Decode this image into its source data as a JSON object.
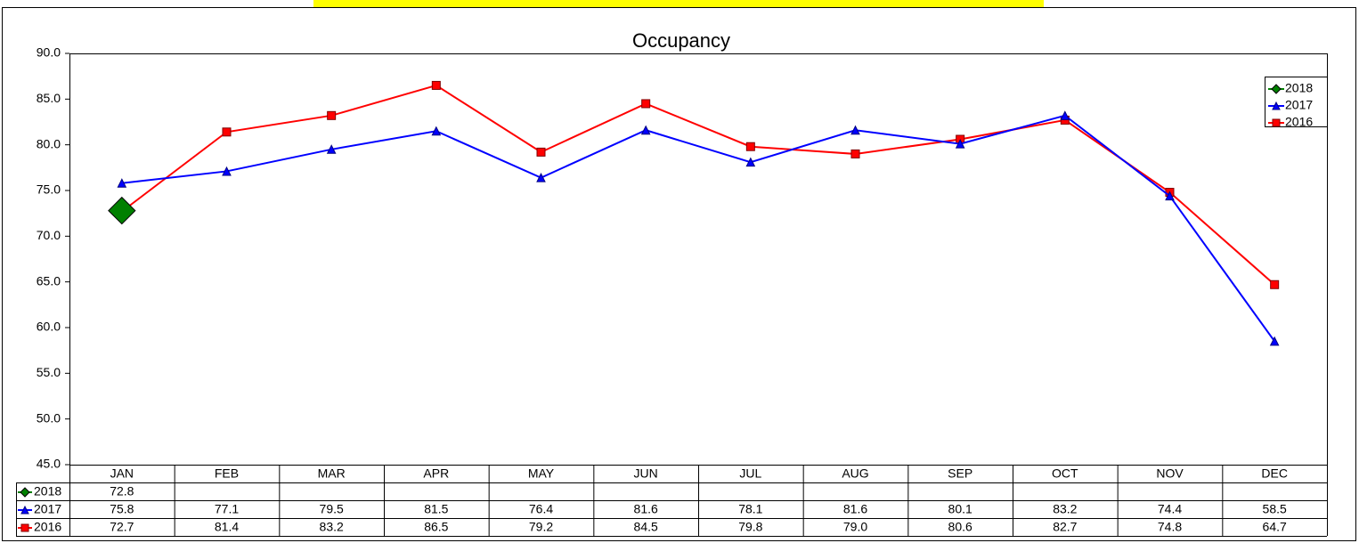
{
  "chart_data": {
    "type": "line",
    "title": "Occupancy",
    "categories": [
      "JAN",
      "FEB",
      "MAR",
      "APR",
      "MAY",
      "JUN",
      "JUL",
      "AUG",
      "SEP",
      "OCT",
      "NOV",
      "DEC"
    ],
    "series": [
      {
        "name": "2018",
        "color": "#008000",
        "marker": "diamond",
        "values": [
          72.8,
          null,
          null,
          null,
          null,
          null,
          null,
          null,
          null,
          null,
          null,
          null
        ],
        "value_labels": [
          "72.8",
          null,
          null,
          null,
          null,
          null,
          null,
          null,
          null,
          null,
          null,
          null
        ]
      },
      {
        "name": "2017",
        "color": "#0000ff",
        "marker": "triangle",
        "values": [
          75.8,
          77.1,
          79.5,
          81.5,
          76.4,
          81.6,
          78.1,
          81.6,
          80.1,
          83.2,
          74.4,
          58.5
        ],
        "value_labels": [
          "75.8",
          "77.1",
          "79.5",
          "81.5",
          "76.4",
          "81.6",
          "78.1",
          "81.6",
          "80.1",
          "83.2",
          "74.4",
          "58.5"
        ]
      },
      {
        "name": "2016",
        "color": "#ff0000",
        "marker": "square",
        "values": [
          72.7,
          81.4,
          83.2,
          86.5,
          79.2,
          84.5,
          79.8,
          79.0,
          80.6,
          82.7,
          74.8,
          64.7
        ],
        "value_labels": [
          "72.7",
          "81.4",
          "83.2",
          "86.5",
          "79.2",
          "84.5",
          "79.8",
          "79.0",
          "80.6",
          "82.7",
          "74.8",
          "64.7"
        ]
      }
    ],
    "ylim": [
      45,
      90
    ],
    "yticks": [
      {
        "value": 45,
        "label": "45.0"
      },
      {
        "value": 50,
        "label": "50.0"
      },
      {
        "value": 55,
        "label": "55.0"
      },
      {
        "value": 60,
        "label": "60.0"
      },
      {
        "value": 65,
        "label": "65.0"
      },
      {
        "value": 70,
        "label": "70.0"
      },
      {
        "value": 75,
        "label": "75.0"
      },
      {
        "value": 80,
        "label": "80.0"
      },
      {
        "value": 85,
        "label": "85.0"
      },
      {
        "value": 90,
        "label": "90.0"
      }
    ],
    "grid": false,
    "legend": "top-right",
    "title_color": "#008000"
  }
}
